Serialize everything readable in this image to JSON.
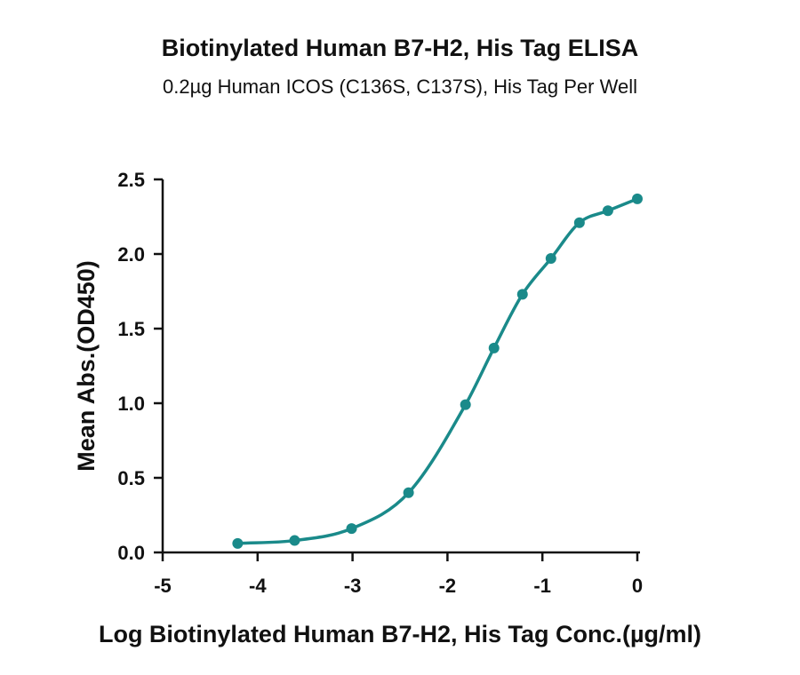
{
  "chart_data": {
    "type": "scatter",
    "title": "Biotinylated Human B7-H2, His Tag ELISA",
    "subtitle": "0.2µg Human ICOS (C136S, C137S), His Tag Per Well",
    "xlabel": "Log Biotinylated Human B7-H2, His Tag Conc.(µg/ml)",
    "ylabel": "Mean Abs.(OD450)",
    "xlim": [
      -5,
      0
    ],
    "ylim": [
      0,
      2.5
    ],
    "x_ticks": [
      -5,
      -4,
      -3,
      -2,
      -1,
      0
    ],
    "x_tick_labels": [
      "-5",
      "-4",
      "-3",
      "-2",
      "-1",
      "0"
    ],
    "y_ticks": [
      0,
      0.5,
      1.0,
      1.5,
      2.0,
      2.5
    ],
    "y_tick_labels": [
      "0.0",
      "0.5",
      "1.0",
      "1.5",
      "2.0",
      "2.5"
    ],
    "grid": false,
    "color": "#1a8a8a",
    "series": [
      {
        "x": [
          -4.21,
          -3.61,
          -3.01,
          -2.41,
          -1.81,
          -1.51,
          -1.21,
          -0.91,
          -0.61,
          -0.31,
          0.0
        ],
        "y": [
          0.06,
          0.08,
          0.16,
          0.4,
          0.99,
          1.37,
          1.73,
          1.97,
          2.21,
          2.29,
          2.37
        ],
        "fit": "4PL sigmoid curve"
      }
    ]
  }
}
